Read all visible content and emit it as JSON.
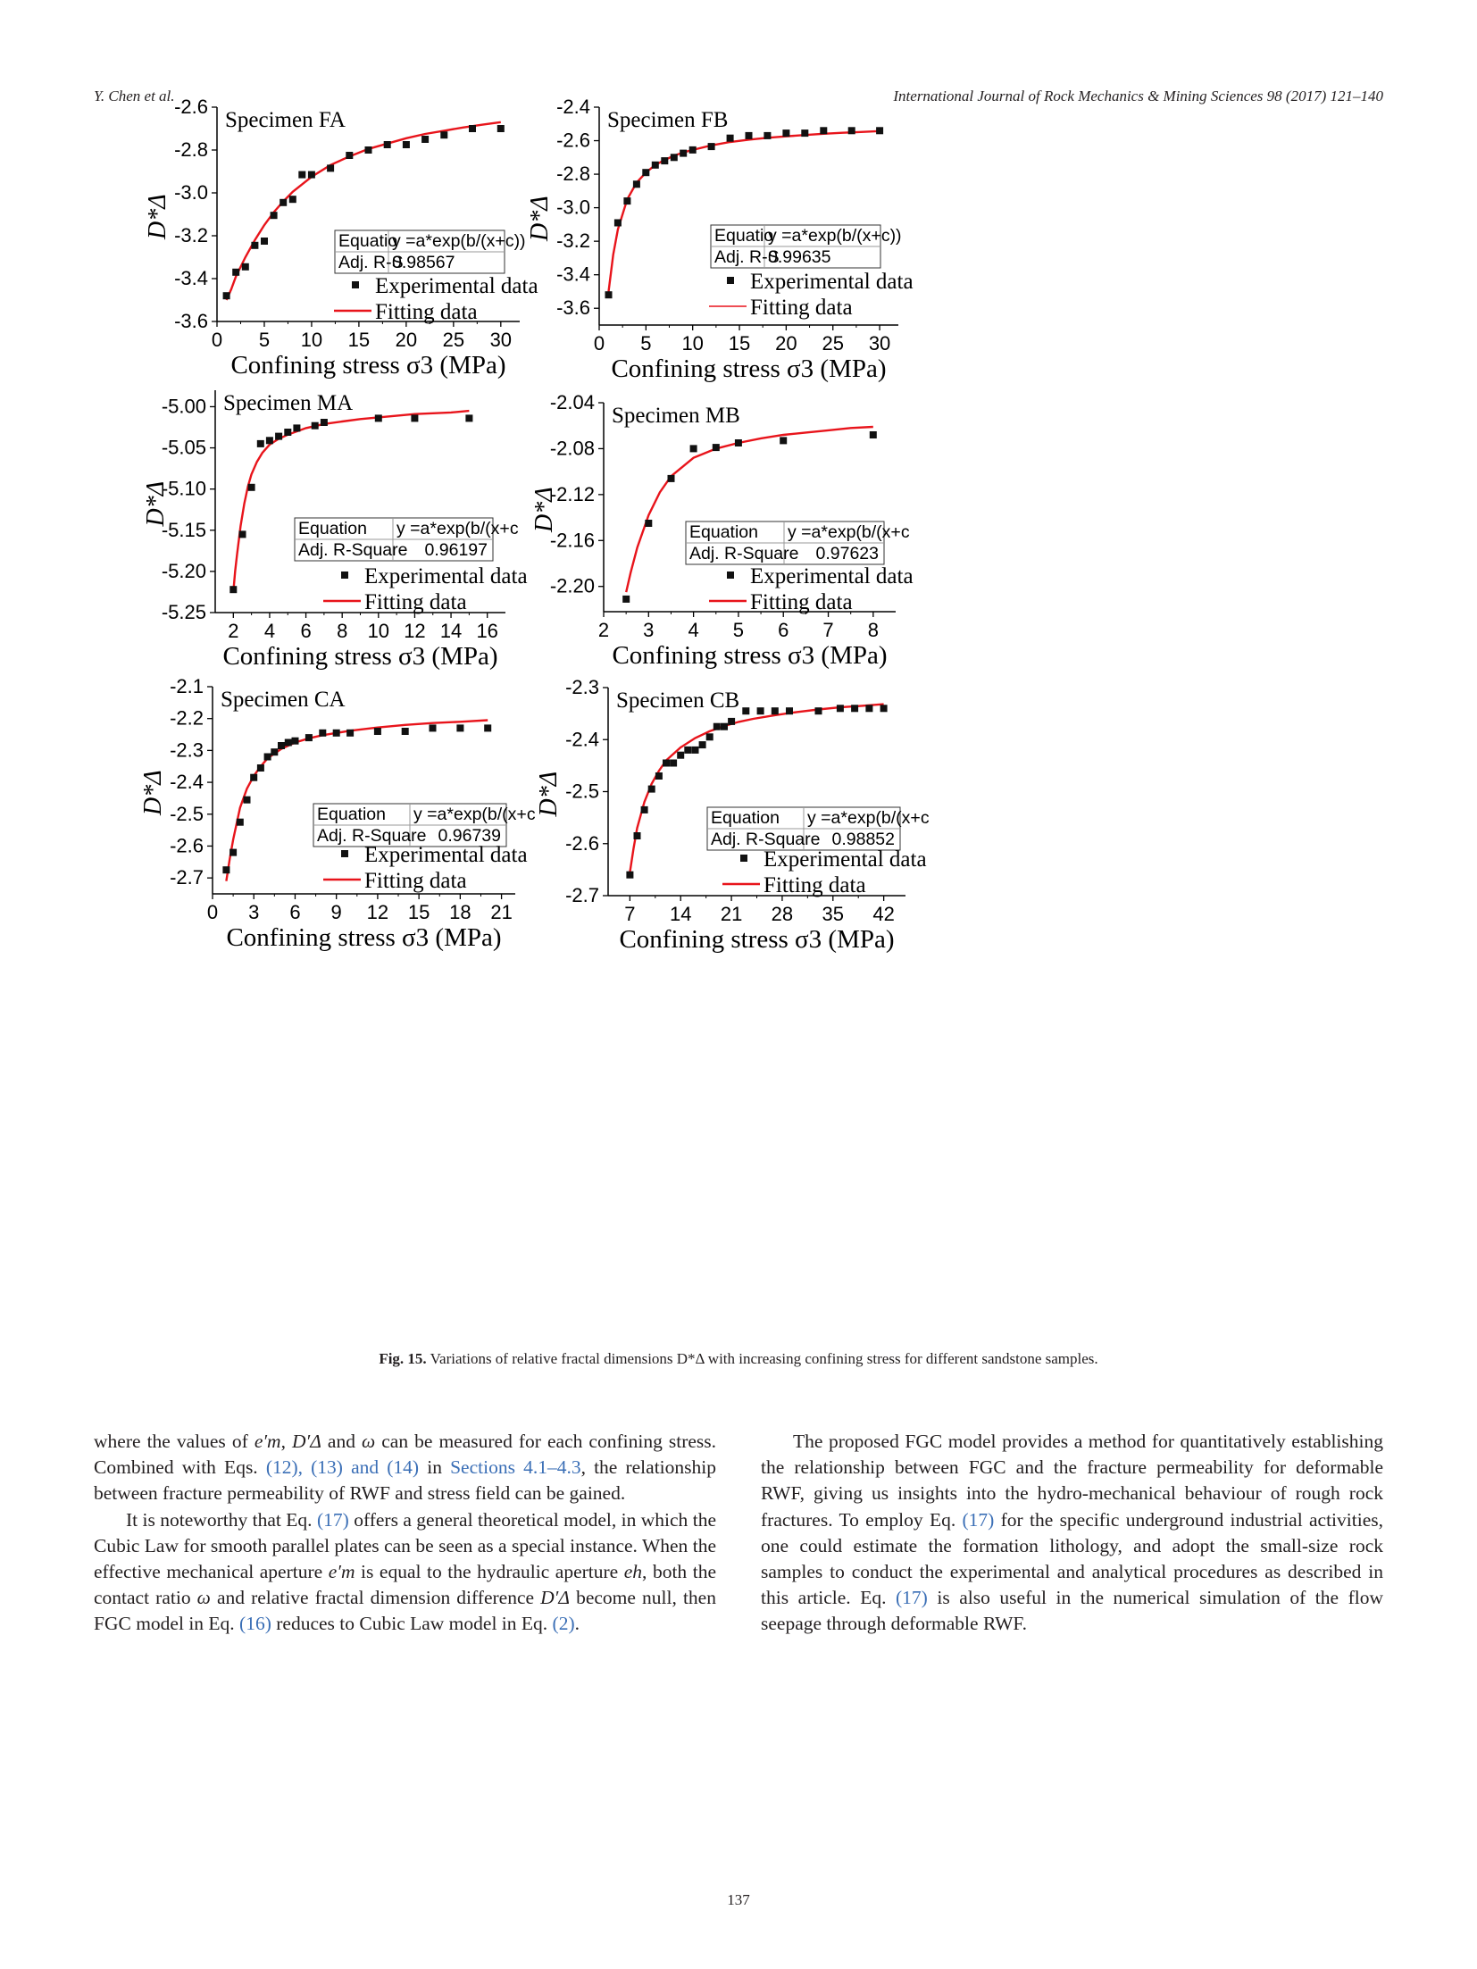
{
  "header": {
    "left": "Y. Chen et al.",
    "right": "International Journal of Rock Mechanics & Mining Sciences 98 (2017) 121–140"
  },
  "figure": {
    "caption_label": "Fig. 15.",
    "caption_text": "Variations of relative fractal dimensions D*Δ with increasing confining stress for different sandstone samples.",
    "colors": {
      "fit_line": "#e8141b",
      "points": "#111111",
      "axis": "#000000"
    }
  },
  "chart_data": [
    {
      "type": "scatter",
      "title": "Specimen FA",
      "xlabel": "Confining stress σ3 (MPa)",
      "ylabel": "D*Δ",
      "xlim": [
        0,
        32
      ],
      "ylim": [
        -3.6,
        -2.6
      ],
      "xticks": [
        0,
        5,
        10,
        15,
        20,
        25,
        30
      ],
      "yticks": [
        -3.6,
        -3.4,
        -3.2,
        -3.0,
        -2.8,
        -2.6
      ],
      "ytick_labels": [
        "-3.6",
        "-3.4",
        "-3.2",
        "-3.0",
        "-2.8",
        "-2.6"
      ],
      "series": [
        {
          "name": "Experimental data",
          "kind": "points",
          "x": [
            1,
            2,
            3,
            4,
            5,
            6,
            7,
            8,
            9,
            10,
            12,
            14,
            16,
            18,
            20,
            22,
            24,
            27,
            30
          ],
          "y": [
            -3.48,
            -3.37,
            -3.345,
            -3.245,
            -3.225,
            -3.105,
            -3.045,
            -3.03,
            -2.915,
            -2.915,
            -2.885,
            -2.825,
            -2.8,
            -2.775,
            -2.775,
            -2.75,
            -2.73,
            -2.7,
            -2.7
          ]
        },
        {
          "name": "Fitting data",
          "kind": "line",
          "x": [
            1,
            1.5,
            2,
            3,
            4,
            5,
            6,
            7,
            8,
            9,
            10,
            12,
            14,
            16,
            18,
            20,
            22,
            24,
            26,
            28,
            30
          ],
          "y": [
            -3.5,
            -3.45,
            -3.39,
            -3.3,
            -3.22,
            -3.15,
            -3.09,
            -3.04,
            -2.995,
            -2.96,
            -2.925,
            -2.87,
            -2.83,
            -2.795,
            -2.77,
            -2.745,
            -2.725,
            -2.71,
            -2.695,
            -2.682,
            -2.67
          ]
        }
      ],
      "fit_table": {
        "rows": [
          [
            "Equatio",
            "y =a*exp(b/(x+c))"
          ],
          [
            "Adj. R-S",
            "0.98567"
          ]
        ]
      },
      "legend_position": "bottom-right"
    },
    {
      "type": "scatter",
      "title": "Specimen FB",
      "xlabel": "Confining stress σ3 (MPa)",
      "ylabel": "D*Δ",
      "xlim": [
        0,
        32
      ],
      "ylim": [
        -3.7,
        -2.4
      ],
      "xticks": [
        0,
        5,
        10,
        15,
        20,
        25,
        30
      ],
      "yticks": [
        -3.6,
        -3.4,
        -3.2,
        -3.0,
        -2.8,
        -2.6,
        -2.4
      ],
      "ytick_labels": [
        "-3.6",
        "-3.4",
        "-3.2",
        "-3.0",
        "-2.8",
        "-2.6",
        "-2.4"
      ],
      "series": [
        {
          "name": "Experimental data",
          "kind": "points",
          "x": [
            1,
            2,
            3,
            4,
            5,
            6,
            7,
            8,
            9,
            10,
            12,
            14,
            16,
            18,
            20,
            22,
            24,
            27,
            30
          ],
          "y": [
            -3.52,
            -3.09,
            -2.96,
            -2.86,
            -2.79,
            -2.745,
            -2.72,
            -2.7,
            -2.675,
            -2.655,
            -2.635,
            -2.585,
            -2.57,
            -2.57,
            -2.555,
            -2.555,
            -2.54,
            -2.54,
            -2.54
          ]
        },
        {
          "name": "Fitting data",
          "kind": "line",
          "x": [
            1,
            1.5,
            2,
            3,
            4,
            5,
            6,
            7,
            8,
            9,
            10,
            12,
            14,
            16,
            18,
            20,
            22,
            24,
            26,
            28,
            30
          ],
          "y": [
            -3.5,
            -3.28,
            -3.13,
            -2.95,
            -2.85,
            -2.79,
            -2.745,
            -2.715,
            -2.69,
            -2.67,
            -2.655,
            -2.628,
            -2.608,
            -2.594,
            -2.583,
            -2.574,
            -2.566,
            -2.559,
            -2.553,
            -2.548,
            -2.543
          ]
        }
      ],
      "fit_table": {
        "rows": [
          [
            "Equatio",
            "y =a*exp(b/(x+c))"
          ],
          [
            "Adj. R-S",
            "0.99635"
          ]
        ]
      },
      "legend_position": "bottom-right"
    },
    {
      "type": "scatter",
      "title": "Specimen MA",
      "xlabel": "Confining stress σ3 (MPa)",
      "ylabel": "D*Δ",
      "xlim": [
        1,
        17
      ],
      "ylim": [
        -5.25,
        -4.98
      ],
      "xticks": [
        2,
        4,
        6,
        8,
        10,
        12,
        14,
        16
      ],
      "yticks": [
        -5.25,
        -5.2,
        -5.15,
        -5.1,
        -5.05,
        -5.0
      ],
      "ytick_labels": [
        "-5.25",
        "-5.20",
        "-5.15",
        "-5.10",
        "-5.05",
        "-5.00"
      ],
      "series": [
        {
          "name": "Experimental data",
          "kind": "points",
          "x": [
            2,
            2.5,
            3,
            3.5,
            4,
            4.5,
            5,
            5.5,
            6.5,
            7,
            10,
            12,
            15
          ],
          "y": [
            -5.222,
            -5.155,
            -5.098,
            -5.045,
            -5.041,
            -5.036,
            -5.031,
            -5.026,
            -5.023,
            -5.019,
            -5.014,
            -5.014,
            -5.014
          ]
        },
        {
          "name": "Fitting data",
          "kind": "line",
          "x": [
            2,
            2.1,
            2.2,
            2.4,
            2.6,
            2.8,
            3,
            3.3,
            3.6,
            4,
            4.5,
            5,
            6,
            7,
            8,
            9,
            10,
            11,
            12,
            13,
            14,
            15
          ],
          "y": [
            -5.225,
            -5.2,
            -5.18,
            -5.145,
            -5.118,
            -5.097,
            -5.082,
            -5.067,
            -5.056,
            -5.046,
            -5.039,
            -5.034,
            -5.026,
            -5.021,
            -5.018,
            -5.015,
            -5.013,
            -5.011,
            -5.009,
            -5.008,
            -5.007,
            -5.005
          ]
        }
      ],
      "fit_table": {
        "rows": [
          [
            "Equation",
            "y =a*exp(b/(x+c"
          ],
          [
            "Adj. R-Square",
            "0.96197"
          ]
        ]
      },
      "legend_position": "bottom-right"
    },
    {
      "type": "scatter",
      "title": "Specimen MB",
      "xlabel": "Confining stress σ3 (MPa)",
      "ylabel": "D*Δ",
      "xlim": [
        2,
        8.5
      ],
      "ylim": [
        -2.222,
        -2.04
      ],
      "xticks": [
        2,
        3,
        4,
        5,
        6,
        7,
        8
      ],
      "yticks": [
        -2.2,
        -2.16,
        -2.12,
        -2.08,
        -2.04
      ],
      "ytick_labels": [
        "-2.20",
        "-2.16",
        "-2.12",
        "-2.08",
        "-2.04"
      ],
      "series": [
        {
          "name": "Experimental data",
          "kind": "points",
          "x": [
            2.5,
            3,
            3.5,
            4,
            4.5,
            5,
            6,
            8
          ],
          "y": [
            -2.211,
            -2.145,
            -2.106,
            -2.08,
            -2.079,
            -2.075,
            -2.073,
            -2.068
          ]
        },
        {
          "name": "Fitting data",
          "kind": "line",
          "x": [
            2.5,
            2.6,
            2.75,
            3,
            3.25,
            3.5,
            4,
            4.5,
            5,
            5.5,
            6,
            6.5,
            7,
            7.5,
            8
          ],
          "y": [
            -2.205,
            -2.188,
            -2.166,
            -2.138,
            -2.118,
            -2.104,
            -2.088,
            -2.08,
            -2.075,
            -2.071,
            -2.068,
            -2.066,
            -2.064,
            -2.062,
            -2.061
          ]
        }
      ],
      "fit_table": {
        "rows": [
          [
            "Equation",
            "y =a*exp(b/(x+c"
          ],
          [
            "Adj. R-Square",
            "0.97623"
          ]
        ]
      },
      "legend_position": "bottom-right"
    },
    {
      "type": "scatter",
      "title": "Specimen CA",
      "xlabel": "Confining stress σ3 (MPa)",
      "ylabel": "D*Δ",
      "xlim": [
        0,
        22
      ],
      "ylim": [
        -2.75,
        -2.1
      ],
      "xticks": [
        0,
        3,
        6,
        9,
        12,
        15,
        18,
        21
      ],
      "yticks": [
        -2.7,
        -2.6,
        -2.5,
        -2.4,
        -2.3,
        -2.2,
        -2.1
      ],
      "ytick_labels": [
        "-2.7",
        "-2.6",
        "-2.5",
        "-2.4",
        "-2.3",
        "-2.2",
        "-2.1"
      ],
      "series": [
        {
          "name": "Experimental data",
          "kind": "points",
          "x": [
            1,
            1.5,
            2,
            2.5,
            3,
            3.5,
            4,
            4.5,
            5,
            5.5,
            6,
            7,
            8,
            9,
            10,
            12,
            14,
            16,
            18,
            20
          ],
          "y": [
            -2.675,
            -2.62,
            -2.525,
            -2.455,
            -2.385,
            -2.355,
            -2.32,
            -2.305,
            -2.285,
            -2.275,
            -2.27,
            -2.26,
            -2.245,
            -2.245,
            -2.245,
            -2.24,
            -2.24,
            -2.23,
            -2.23,
            -2.23
          ]
        },
        {
          "name": "Fitting data",
          "kind": "line",
          "x": [
            1,
            1.25,
            1.5,
            2,
            2.5,
            3,
            3.5,
            4,
            5,
            6,
            7,
            8,
            10,
            12,
            14,
            16,
            18,
            20
          ],
          "y": [
            -2.71,
            -2.64,
            -2.58,
            -2.48,
            -2.42,
            -2.38,
            -2.35,
            -2.325,
            -2.295,
            -2.275,
            -2.262,
            -2.252,
            -2.238,
            -2.228,
            -2.22,
            -2.214,
            -2.21,
            -2.205
          ]
        }
      ],
      "fit_table": {
        "rows": [
          [
            "Equation",
            "y =a*exp(b/(x+c"
          ],
          [
            "Adj. R-Square",
            "0.96739"
          ]
        ]
      },
      "legend_position": "bottom-right"
    },
    {
      "type": "scatter",
      "title": "Specimen CB",
      "xlabel": "Confining stress σ3 (MPa)",
      "ylabel": "D*Δ",
      "xlim": [
        4,
        45
      ],
      "ylim": [
        -2.7,
        -2.3
      ],
      "xticks": [
        7,
        14,
        21,
        28,
        35,
        42
      ],
      "yticks": [
        -2.7,
        -2.6,
        -2.5,
        -2.4,
        -2.3
      ],
      "ytick_labels": [
        "-2.7",
        "-2.6",
        "-2.5",
        "-2.4",
        "-2.3"
      ],
      "series": [
        {
          "name": "Experimental data",
          "kind": "points",
          "x": [
            7,
            8,
            9,
            10,
            11,
            12,
            13,
            14,
            15,
            16,
            17,
            18,
            19,
            20,
            21,
            23,
            25,
            27,
            29,
            33,
            36,
            38,
            40,
            42
          ],
          "y": [
            -2.66,
            -2.585,
            -2.535,
            -2.495,
            -2.47,
            -2.445,
            -2.445,
            -2.43,
            -2.42,
            -2.42,
            -2.41,
            -2.395,
            -2.375,
            -2.375,
            -2.365,
            -2.345,
            -2.345,
            -2.345,
            -2.345,
            -2.345,
            -2.34,
            -2.34,
            -2.34,
            -2.34
          ]
        },
        {
          "name": "Fitting data",
          "kind": "line",
          "x": [
            7,
            7.5,
            8,
            9,
            10,
            11,
            12,
            14,
            16,
            18,
            20,
            22,
            24,
            27,
            30,
            33,
            36,
            39,
            42
          ],
          "y": [
            -2.655,
            -2.61,
            -2.57,
            -2.52,
            -2.485,
            -2.46,
            -2.44,
            -2.415,
            -2.397,
            -2.384,
            -2.374,
            -2.366,
            -2.36,
            -2.353,
            -2.347,
            -2.342,
            -2.338,
            -2.335,
            -2.332
          ]
        }
      ],
      "fit_table": {
        "rows": [
          [
            "Equation",
            "y =a*exp(b/(x+c"
          ],
          [
            "Adj. R-Square",
            "0.98852"
          ]
        ]
      },
      "legend_position": "bottom-right"
    }
  ],
  "body": {
    "left_p1": {
      "t1": "where the values of ",
      "v1": "e′m",
      "t2": ", ",
      "v2": "D′Δ",
      "t3": " and ",
      "v3": "ω",
      "t4": " can be measured for each confining stress. Combined with Eqs. ",
      "l1": "(12), (13) and (14)",
      "t5": " in ",
      "l2": "Sections 4.1–4.3",
      "t6": ", the relationship between fracture permeability of RWF and stress field can be gained."
    },
    "left_p2": {
      "t1": "It is noteworthy that Eq. ",
      "l1": "(17)",
      "t2": " offers a general theoretical model, in which the Cubic Law for smooth parallel plates can be seen as a special instance. When the effective mechanical aperture ",
      "v1": "e′m",
      "t3": " is equal to the hydraulic aperture ",
      "v2": "eh",
      "t4": ", both the contact ratio ",
      "v3": "ω",
      "t5": " and relative fractal dimension difference ",
      "v4": "D′Δ",
      "t6": " become null, then FGC model in Eq. ",
      "l2": "(16)",
      "t7": " reduces to Cubic Law model in Eq. ",
      "l3": "(2)",
      "t8": "."
    },
    "right_p1": {
      "t1": "The proposed FGC model provides a method for quantitatively establishing the relationship between FGC and the fracture permeability for deformable RWF, giving us insights into the hydro-mechanical behaviour of rough rock fractures. To employ Eq. ",
      "l1": "(17)",
      "t2": " for the specific underground industrial activities, one could estimate the formation lithology, and adopt the small-size rock samples to conduct the experimental and analytical procedures as described in this article. Eq. ",
      "l2": "(17)",
      "t3": " is also useful in the numerical simulation of the flow seepage through deformable RWF."
    }
  },
  "page_number": "137"
}
